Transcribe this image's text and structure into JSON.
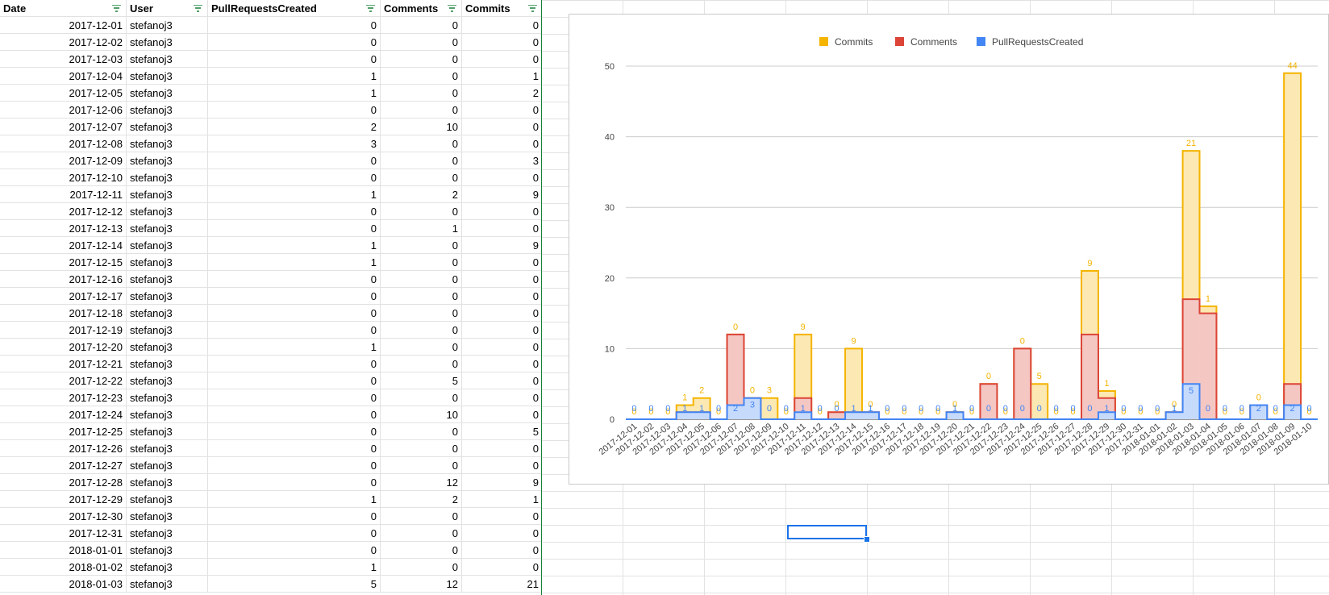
{
  "sheet": {
    "headers": {
      "date": "Date",
      "user": "User",
      "pull_requests": "PullRequestsCreated",
      "comments": "Comments",
      "commits": "Commits"
    },
    "rows": [
      {
        "date": "2017-12-01",
        "user": "stefanoj3",
        "pr": "0",
        "comments": "0",
        "commits": "0"
      },
      {
        "date": "2017-12-02",
        "user": "stefanoj3",
        "pr": "0",
        "comments": "0",
        "commits": "0"
      },
      {
        "date": "2017-12-03",
        "user": "stefanoj3",
        "pr": "0",
        "comments": "0",
        "commits": "0"
      },
      {
        "date": "2017-12-04",
        "user": "stefanoj3",
        "pr": "1",
        "comments": "0",
        "commits": "1"
      },
      {
        "date": "2017-12-05",
        "user": "stefanoj3",
        "pr": "1",
        "comments": "0",
        "commits": "2"
      },
      {
        "date": "2017-12-06",
        "user": "stefanoj3",
        "pr": "0",
        "comments": "0",
        "commits": "0"
      },
      {
        "date": "2017-12-07",
        "user": "stefanoj3",
        "pr": "2",
        "comments": "10",
        "commits": "0"
      },
      {
        "date": "2017-12-08",
        "user": "stefanoj3",
        "pr": "3",
        "comments": "0",
        "commits": "0"
      },
      {
        "date": "2017-12-09",
        "user": "stefanoj3",
        "pr": "0",
        "comments": "0",
        "commits": "3"
      },
      {
        "date": "2017-12-10",
        "user": "stefanoj3",
        "pr": "0",
        "comments": "0",
        "commits": "0"
      },
      {
        "date": "2017-12-11",
        "user": "stefanoj3",
        "pr": "1",
        "comments": "2",
        "commits": "9"
      },
      {
        "date": "2017-12-12",
        "user": "stefanoj3",
        "pr": "0",
        "comments": "0",
        "commits": "0"
      },
      {
        "date": "2017-12-13",
        "user": "stefanoj3",
        "pr": "0",
        "comments": "1",
        "commits": "0"
      },
      {
        "date": "2017-12-14",
        "user": "stefanoj3",
        "pr": "1",
        "comments": "0",
        "commits": "9"
      },
      {
        "date": "2017-12-15",
        "user": "stefanoj3",
        "pr": "1",
        "comments": "0",
        "commits": "0"
      },
      {
        "date": "2017-12-16",
        "user": "stefanoj3",
        "pr": "0",
        "comments": "0",
        "commits": "0"
      },
      {
        "date": "2017-12-17",
        "user": "stefanoj3",
        "pr": "0",
        "comments": "0",
        "commits": "0"
      },
      {
        "date": "2017-12-18",
        "user": "stefanoj3",
        "pr": "0",
        "comments": "0",
        "commits": "0"
      },
      {
        "date": "2017-12-19",
        "user": "stefanoj3",
        "pr": "0",
        "comments": "0",
        "commits": "0"
      },
      {
        "date": "2017-12-20",
        "user": "stefanoj3",
        "pr": "1",
        "comments": "0",
        "commits": "0"
      },
      {
        "date": "2017-12-21",
        "user": "stefanoj3",
        "pr": "0",
        "comments": "0",
        "commits": "0"
      },
      {
        "date": "2017-12-22",
        "user": "stefanoj3",
        "pr": "0",
        "comments": "5",
        "commits": "0"
      },
      {
        "date": "2017-12-23",
        "user": "stefanoj3",
        "pr": "0",
        "comments": "0",
        "commits": "0"
      },
      {
        "date": "2017-12-24",
        "user": "stefanoj3",
        "pr": "0",
        "comments": "10",
        "commits": "0"
      },
      {
        "date": "2017-12-25",
        "user": "stefanoj3",
        "pr": "0",
        "comments": "0",
        "commits": "5"
      },
      {
        "date": "2017-12-26",
        "user": "stefanoj3",
        "pr": "0",
        "comments": "0",
        "commits": "0"
      },
      {
        "date": "2017-12-27",
        "user": "stefanoj3",
        "pr": "0",
        "comments": "0",
        "commits": "0"
      },
      {
        "date": "2017-12-28",
        "user": "stefanoj3",
        "pr": "0",
        "comments": "12",
        "commits": "9"
      },
      {
        "date": "2017-12-29",
        "user": "stefanoj3",
        "pr": "1",
        "comments": "2",
        "commits": "1"
      },
      {
        "date": "2017-12-30",
        "user": "stefanoj3",
        "pr": "0",
        "comments": "0",
        "commits": "0"
      },
      {
        "date": "2017-12-31",
        "user": "stefanoj3",
        "pr": "0",
        "comments": "0",
        "commits": "0"
      },
      {
        "date": "2018-01-01",
        "user": "stefanoj3",
        "pr": "0",
        "comments": "0",
        "commits": "0"
      },
      {
        "date": "2018-01-02",
        "user": "stefanoj3",
        "pr": "1",
        "comments": "0",
        "commits": "0"
      },
      {
        "date": "2018-01-03",
        "user": "stefanoj3",
        "pr": "5",
        "comments": "12",
        "commits": "21"
      }
    ]
  },
  "chart_data": {
    "type": "area",
    "stacked": true,
    "stepped": true,
    "legend_position": "top",
    "grid": true,
    "ylim": [
      0,
      50
    ],
    "yticks": [
      0,
      10,
      20,
      30,
      40,
      50
    ],
    "categories": [
      "2017-12-01",
      "2017-12-02",
      "2017-12-03",
      "2017-12-04",
      "2017-12-05",
      "2017-12-06",
      "2017-12-07",
      "2017-12-08",
      "2017-12-09",
      "2017-12-10",
      "2017-12-11",
      "2017-12-12",
      "2017-12-13",
      "2017-12-14",
      "2017-12-15",
      "2017-12-16",
      "2017-12-17",
      "2017-12-18",
      "2017-12-19",
      "2017-12-20",
      "2017-12-21",
      "2017-12-22",
      "2017-12-23",
      "2017-12-24",
      "2017-12-25",
      "2017-12-26",
      "2017-12-27",
      "2017-12-28",
      "2017-12-29",
      "2017-12-30",
      "2017-12-31",
      "2018-01-01",
      "2018-01-02",
      "2018-01-03",
      "2018-01-04",
      "2018-01-05",
      "2018-01-06",
      "2018-01-07",
      "2018-01-08",
      "2018-01-09",
      "2018-01-10"
    ],
    "series": [
      {
        "name": "Commits",
        "color": "#f4b400",
        "values": [
          0,
          0,
          0,
          1,
          2,
          0,
          0,
          0,
          3,
          0,
          9,
          0,
          0,
          9,
          0,
          0,
          0,
          0,
          0,
          0,
          0,
          0,
          0,
          0,
          5,
          0,
          0,
          9,
          1,
          0,
          0,
          0,
          0,
          21,
          1,
          0,
          0,
          0,
          0,
          44,
          0
        ]
      },
      {
        "name": "Comments",
        "color": "#db4437",
        "values": [
          0,
          0,
          0,
          0,
          0,
          0,
          10,
          0,
          0,
          0,
          2,
          0,
          1,
          0,
          0,
          0,
          0,
          0,
          0,
          0,
          0,
          5,
          0,
          10,
          0,
          0,
          0,
          12,
          2,
          0,
          0,
          0,
          0,
          12,
          15,
          0,
          0,
          0,
          0,
          3,
          0
        ]
      },
      {
        "name": "PullRequestsCreated",
        "color": "#4285f4",
        "values": [
          0,
          0,
          0,
          1,
          1,
          0,
          2,
          3,
          0,
          0,
          1,
          0,
          0,
          1,
          1,
          0,
          0,
          0,
          0,
          1,
          0,
          0,
          0,
          0,
          0,
          0,
          0,
          0,
          1,
          0,
          0,
          0,
          1,
          5,
          0,
          0,
          0,
          2,
          0,
          2,
          0
        ]
      }
    ],
    "legend": [
      "Commits",
      "Comments",
      "PullRequestsCreated"
    ]
  }
}
